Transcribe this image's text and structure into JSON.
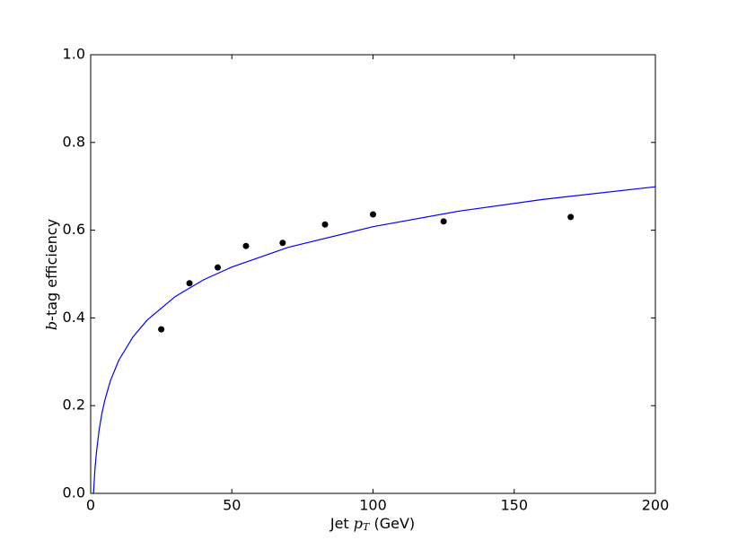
{
  "chart_data": {
    "type": "scatter",
    "xlabel": {
      "prefix": "Jet",
      "var": "p",
      "sub": "T",
      "unit": "(GeV)"
    },
    "ylabel": {
      "var": "b",
      "text": "-tag efficiency"
    },
    "points": {
      "color": "#000000",
      "x": [
        25,
        35,
        45,
        55,
        68,
        83,
        100,
        125,
        170
      ],
      "values": [
        0.374,
        0.479,
        0.515,
        0.564,
        0.571,
        0.613,
        0.636,
        0.62,
        0.63
      ]
    },
    "fit": {
      "color": "#0000ff",
      "x": [
        1,
        1.5,
        2,
        3,
        4,
        5,
        7,
        10,
        15,
        20,
        30,
        40,
        50,
        70,
        100,
        130,
        160,
        200
      ],
      "values": [
        0,
        0.054,
        0.091,
        0.145,
        0.183,
        0.212,
        0.257,
        0.304,
        0.357,
        0.395,
        0.449,
        0.487,
        0.516,
        0.561,
        0.608,
        0.643,
        0.67,
        0.699
      ]
    },
    "xlim": [
      0,
      200
    ],
    "ylim": [
      0,
      1
    ],
    "xticks": [
      0,
      50,
      100,
      150,
      200
    ],
    "yticks": [
      {
        "value": 0,
        "label": "0.0"
      },
      0.2,
      0.4,
      0.6,
      0.8,
      {
        "value": 1,
        "label": "1.0"
      }
    ]
  }
}
